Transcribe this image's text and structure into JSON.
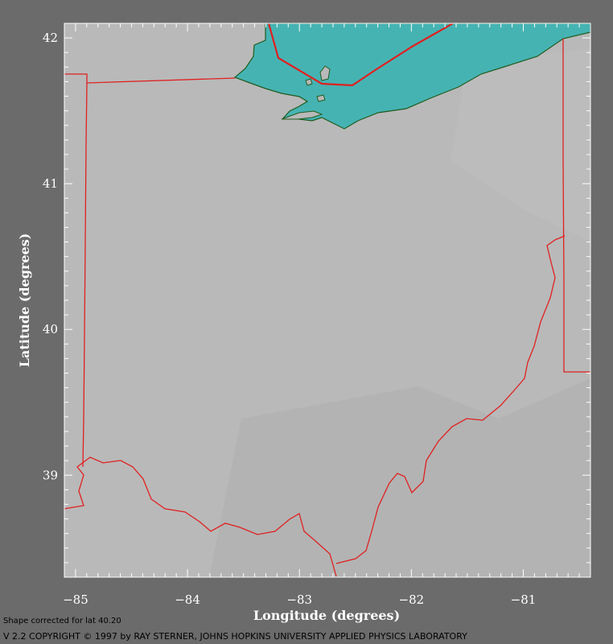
{
  "map": {
    "x_label": "Longitude (degrees)",
    "y_label": "Latitude (degrees)",
    "lon_range": [
      -85.1,
      -80.4
    ],
    "lat_range": [
      38.3,
      42.1
    ],
    "x_ticks": [
      {
        "value": -85,
        "label": "−85"
      },
      {
        "value": -84,
        "label": "−84"
      },
      {
        "value": -83,
        "label": "−83"
      },
      {
        "value": -82,
        "label": "−82"
      },
      {
        "value": -81,
        "label": "−81"
      }
    ],
    "y_ticks": [
      {
        "value": 42,
        "label": "42"
      },
      {
        "value": 41,
        "label": "41"
      },
      {
        "value": 40,
        "label": "40"
      },
      {
        "value": 39,
        "label": "39"
      }
    ],
    "colors": {
      "terrain": "#b9b9b9",
      "lake": "#46b3b3",
      "lake_shore": "#1f5c1f",
      "boundary": "#e02020",
      "frame_bg": "#6b6b6b",
      "tick": "#ffffff"
    }
  },
  "footer": {
    "note": "Shape corrected for lat 40.20",
    "credit": "V 2.2   COPYRIGHT © 1997 by RAY STERNER, JOHNS HOPKINS UNIVERSITY APPLIED PHYSICS LABORATORY"
  }
}
